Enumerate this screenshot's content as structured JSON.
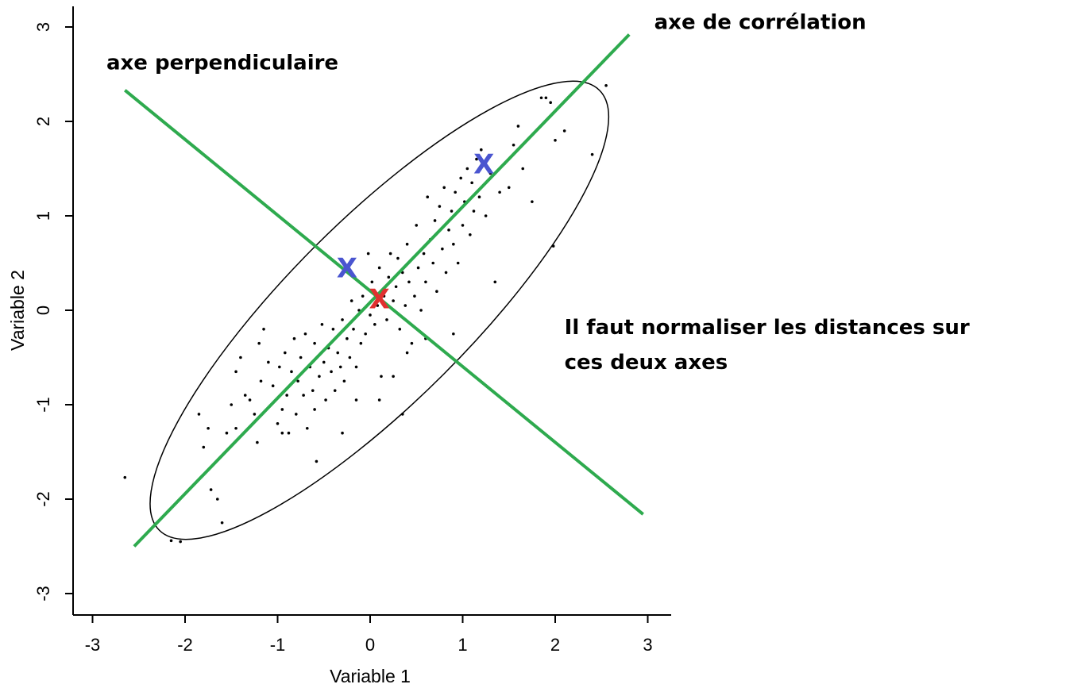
{
  "chart_data": {
    "type": "scatter",
    "title": "",
    "xlabel": "Variable 1",
    "ylabel": "Variable 2",
    "xlim": [
      -3.25,
      3.25
    ],
    "ylim": [
      -3.2,
      3.2
    ],
    "xticks": [
      -3,
      -2,
      -1,
      0,
      1,
      2,
      3
    ],
    "yticks": [
      -3,
      -2,
      -1,
      0,
      1,
      2,
      3
    ],
    "grid": false,
    "points": [
      [
        -2.65,
        -1.77
      ],
      [
        -2.15,
        -2.44
      ],
      [
        -2.05,
        -2.45
      ],
      [
        -1.85,
        -1.1
      ],
      [
        -1.8,
        -1.45
      ],
      [
        -1.75,
        -1.25
      ],
      [
        -1.72,
        -1.9
      ],
      [
        -1.65,
        -2.0
      ],
      [
        -1.6,
        -2.25
      ],
      [
        -1.55,
        -1.3
      ],
      [
        -1.5,
        -1.0
      ],
      [
        -1.45,
        -0.65
      ],
      [
        -1.4,
        -0.5
      ],
      [
        -1.35,
        -0.9
      ],
      [
        -1.3,
        -0.95
      ],
      [
        -1.25,
        -1.1
      ],
      [
        -1.22,
        -1.4
      ],
      [
        -1.18,
        -0.75
      ],
      [
        -1.15,
        -0.2
      ],
      [
        -1.1,
        -0.55
      ],
      [
        -1.05,
        -0.8
      ],
      [
        -1.0,
        -1.2
      ],
      [
        -0.98,
        -0.6
      ],
      [
        -0.95,
        -1.05
      ],
      [
        -0.92,
        -0.45
      ],
      [
        -0.9,
        -0.9
      ],
      [
        -0.88,
        -1.3
      ],
      [
        -0.85,
        -0.65
      ],
      [
        -0.82,
        -0.3
      ],
      [
        -0.8,
        -1.1
      ],
      [
        -0.78,
        -0.75
      ],
      [
        -0.75,
        -0.5
      ],
      [
        -0.72,
        -0.9
      ],
      [
        -0.7,
        -0.25
      ],
      [
        -0.68,
        -1.25
      ],
      [
        -0.65,
        -0.6
      ],
      [
        -0.62,
        -0.85
      ],
      [
        -0.6,
        -0.35
      ],
      [
        -0.58,
        -1.6
      ],
      [
        -0.55,
        -0.7
      ],
      [
        -0.52,
        -0.15
      ],
      [
        -0.5,
        -0.55
      ],
      [
        -0.48,
        -0.95
      ],
      [
        -0.45,
        -0.4
      ],
      [
        -0.42,
        -0.65
      ],
      [
        -0.4,
        -0.2
      ],
      [
        -0.38,
        -0.85
      ],
      [
        -0.35,
        -0.45
      ],
      [
        -0.32,
        -0.6
      ],
      [
        -0.3,
        -0.1
      ],
      [
        -0.28,
        -0.75
      ],
      [
        -0.25,
        -0.3
      ],
      [
        -0.22,
        -0.5
      ],
      [
        -0.2,
        0.1
      ],
      [
        -0.18,
        -0.2
      ],
      [
        -0.15,
        -0.6
      ],
      [
        -0.12,
        0.0
      ],
      [
        -0.1,
        -0.35
      ],
      [
        -0.08,
        0.15
      ],
      [
        -0.05,
        -0.25
      ],
      [
        -0.02,
        0.6
      ],
      [
        0.0,
        -0.05
      ],
      [
        0.02,
        0.3
      ],
      [
        0.05,
        -0.15
      ],
      [
        0.08,
        0.05
      ],
      [
        0.1,
        0.45
      ],
      [
        0.12,
        -0.7
      ],
      [
        0.15,
        0.15
      ],
      [
        0.18,
        -0.1
      ],
      [
        0.2,
        0.35
      ],
      [
        0.22,
        0.6
      ],
      [
        0.25,
        0.1
      ],
      [
        0.28,
        0.25
      ],
      [
        0.3,
        0.55
      ],
      [
        0.32,
        -0.2
      ],
      [
        0.35,
        0.4
      ],
      [
        0.38,
        0.05
      ],
      [
        0.4,
        0.7
      ],
      [
        0.42,
        0.3
      ],
      [
        0.45,
        -0.35
      ],
      [
        0.48,
        0.15
      ],
      [
        0.5,
        0.9
      ],
      [
        0.52,
        0.45
      ],
      [
        0.55,
        0.0
      ],
      [
        0.58,
        0.6
      ],
      [
        0.6,
        0.3
      ],
      [
        0.62,
        1.2
      ],
      [
        0.65,
        0.75
      ],
      [
        0.68,
        0.5
      ],
      [
        0.7,
        0.95
      ],
      [
        0.72,
        0.2
      ],
      [
        0.75,
        1.1
      ],
      [
        0.78,
        0.65
      ],
      [
        0.8,
        1.3
      ],
      [
        0.82,
        0.4
      ],
      [
        0.85,
        0.85
      ],
      [
        0.88,
        1.05
      ],
      [
        0.9,
        0.7
      ],
      [
        0.92,
        1.25
      ],
      [
        0.95,
        0.5
      ],
      [
        0.98,
        1.4
      ],
      [
        1.0,
        0.9
      ],
      [
        1.02,
        1.15
      ],
      [
        1.05,
        1.5
      ],
      [
        1.08,
        0.8
      ],
      [
        1.1,
        1.35
      ],
      [
        1.12,
        1.05
      ],
      [
        1.15,
        1.6
      ],
      [
        1.18,
        1.2
      ],
      [
        1.2,
        1.7
      ],
      [
        1.25,
        1.0
      ],
      [
        1.3,
        1.45
      ],
      [
        1.35,
        0.3
      ],
      [
        1.4,
        1.25
      ],
      [
        1.45,
        1.55
      ],
      [
        1.5,
        1.3
      ],
      [
        1.55,
        1.75
      ],
      [
        1.6,
        1.95
      ],
      [
        1.65,
        1.5
      ],
      [
        1.75,
        1.15
      ],
      [
        1.85,
        2.25
      ],
      [
        1.9,
        2.25
      ],
      [
        1.95,
        2.2
      ],
      [
        1.98,
        0.68
      ],
      [
        2.0,
        1.8
      ],
      [
        2.1,
        1.9
      ],
      [
        2.4,
        1.65
      ],
      [
        2.55,
        2.38
      ],
      [
        0.35,
        -1.1
      ],
      [
        0.1,
        -0.95
      ],
      [
        0.6,
        -0.3
      ],
      [
        -0.3,
        -1.3
      ],
      [
        -1.45,
        -1.25
      ],
      [
        -1.2,
        -0.35
      ],
      [
        0.25,
        -0.7
      ],
      [
        -0.15,
        -0.95
      ],
      [
        0.4,
        -0.45
      ],
      [
        0.9,
        -0.25
      ],
      [
        -0.6,
        -1.05
      ],
      [
        -0.95,
        -1.3
      ]
    ],
    "ellipse": {
      "cx": 0.1,
      "cy": 0.0,
      "a": 3.33,
      "b": 0.97,
      "angle_deg": 45
    },
    "lines": [
      {
        "name": "axe de corrélation",
        "color": "#2eaa4e",
        "x": [
          -2.55,
          2.8
        ],
        "y": [
          -2.5,
          2.92
        ]
      },
      {
        "name": "axe perpendiculaire",
        "color": "#2eaa4e",
        "x": [
          -2.65,
          2.95
        ],
        "y": [
          2.33,
          -2.16
        ]
      }
    ],
    "markers": [
      {
        "label": "X",
        "x": -0.25,
        "y": 0.45,
        "color": "#4a55d0"
      },
      {
        "label": "X",
        "x": 1.23,
        "y": 1.55,
        "color": "#4a55d0"
      },
      {
        "label": "X",
        "x": 0.1,
        "y": 0.12,
        "color": "#e03030"
      }
    ],
    "annotations": [
      {
        "text": "axe de corrélation",
        "x": 3.07,
        "y": 2.98
      },
      {
        "text": "axe perpendiculaire",
        "x": -2.85,
        "y": 2.55
      },
      {
        "text": "Il faut normaliser les distances sur",
        "x": 2.1,
        "y": -0.25
      },
      {
        "text": "ces deux axes",
        "x": 2.1,
        "y": -0.62
      }
    ]
  }
}
